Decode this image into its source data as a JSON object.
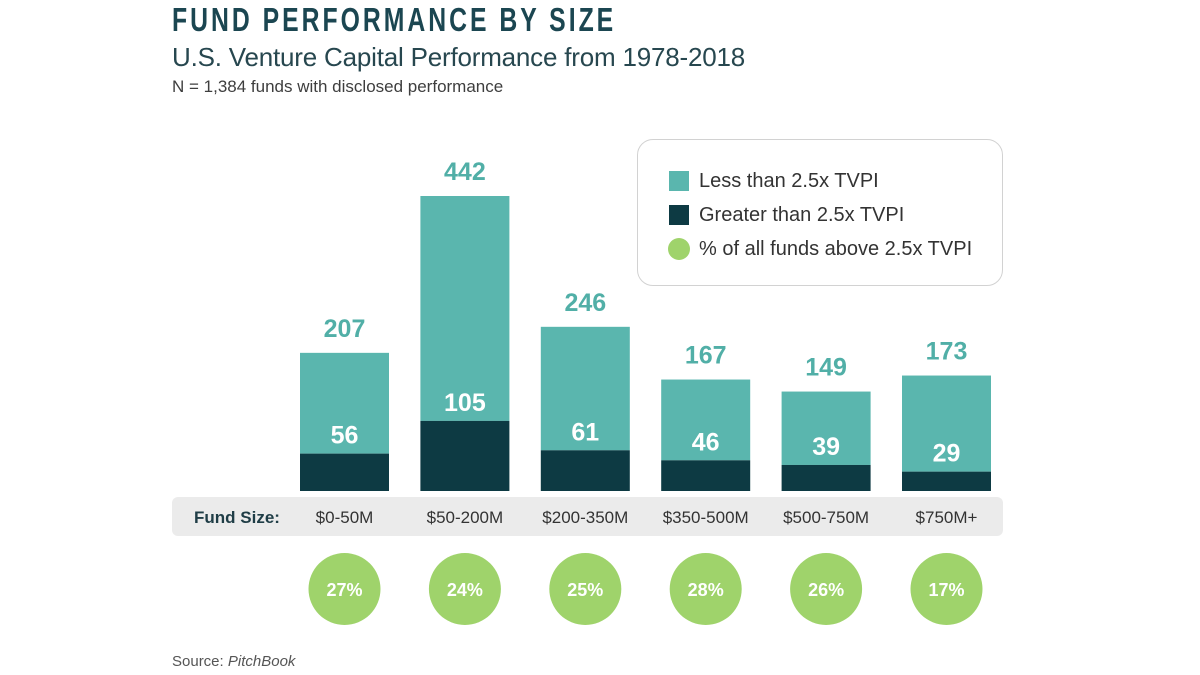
{
  "colors": {
    "less": "#5ab6ae",
    "greater": "#0d3a43",
    "percent": "#9fd36b",
    "total_label": "#51afa7"
  },
  "chart_data": {
    "type": "bar",
    "stacked": true,
    "title": "FUND PERFORMANCE BY SIZE",
    "subtitle": "U.S. Venture Capital Performance from 1978-2018",
    "note": "N = 1,384 funds with disclosed performance",
    "xlabel": "Fund Size:",
    "categories": [
      "$0-50M",
      "$50-200M",
      "$200-350M",
      "$350-500M",
      "$500-750M",
      "$750M+"
    ],
    "totals": [
      207,
      442,
      246,
      167,
      149,
      173
    ],
    "series": [
      {
        "name": "Less than 2.5x TVPI",
        "values": [
          151,
          337,
          185,
          121,
          110,
          144
        ]
      },
      {
        "name": "Greater than 2.5x TVPI",
        "values": [
          56,
          105,
          61,
          46,
          39,
          29
        ]
      }
    ],
    "percent_above": {
      "name": "% of all funds above 2.5x TVPI",
      "values": [
        27,
        24,
        25,
        28,
        26,
        17
      ],
      "unit": "%"
    },
    "legend_position": "top-right",
    "grid": false
  },
  "source": {
    "label": "Source:",
    "name": "PitchBook"
  }
}
